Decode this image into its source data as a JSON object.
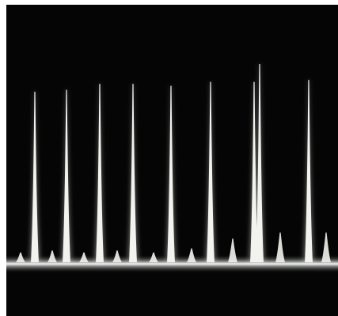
{
  "scope_trace": {
    "background_color": "#050505",
    "trace_color": "#f2f2ee",
    "glow_color": "#b8bdb8",
    "tall_peaks": [
      {
        "index": 1,
        "level": 0.86
      },
      {
        "index": 2,
        "level": 0.87
      },
      {
        "index": 3,
        "level": 0.9
      },
      {
        "index": 4,
        "level": 0.9
      },
      {
        "index": 5,
        "level": 0.89
      },
      {
        "index": 6,
        "level": 0.91
      },
      {
        "index": 7,
        "level": 0.91
      },
      {
        "index": 8,
        "level": 1.0
      },
      {
        "index": 9,
        "level": 0.92
      }
    ],
    "small_peaks": [
      {
        "index": 1,
        "level": 0.05
      },
      {
        "index": 2,
        "level": 0.06
      },
      {
        "index": 3,
        "level": 0.05
      },
      {
        "index": 4,
        "level": 0.06
      },
      {
        "index": 5,
        "level": 0.05
      },
      {
        "index": 6,
        "level": 0.07
      },
      {
        "index": 7,
        "level": 0.12
      },
      {
        "index": 8,
        "level": 0.15
      },
      {
        "index": 9,
        "level": 0.15
      }
    ]
  }
}
